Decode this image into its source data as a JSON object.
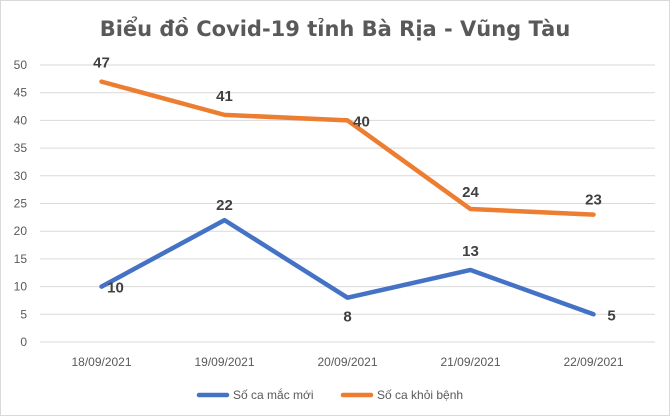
{
  "chart_data": {
    "type": "line",
    "title": "Biểu đồ Covid-19 tỉnh Bà Rịa - Vũng Tàu",
    "xlabel": "",
    "ylabel": "",
    "categories": [
      "18/09/2021",
      "19/09/2021",
      "20/09/2021",
      "21/09/2021",
      "22/09/2021"
    ],
    "ylim": [
      0,
      50
    ],
    "yticks": [
      "0",
      "5",
      "10",
      "15",
      "20",
      "25",
      "30",
      "35",
      "40",
      "45",
      "50"
    ],
    "grid": true,
    "legend_position": "bottom",
    "series": [
      {
        "name": "Số ca mắc mới",
        "color": "#4472C4",
        "values": [
          10,
          22,
          8,
          13,
          5
        ]
      },
      {
        "name": "Số ca khỏi bệnh",
        "color": "#ED7D31",
        "values": [
          47,
          41,
          40,
          24,
          23
        ]
      }
    ]
  }
}
